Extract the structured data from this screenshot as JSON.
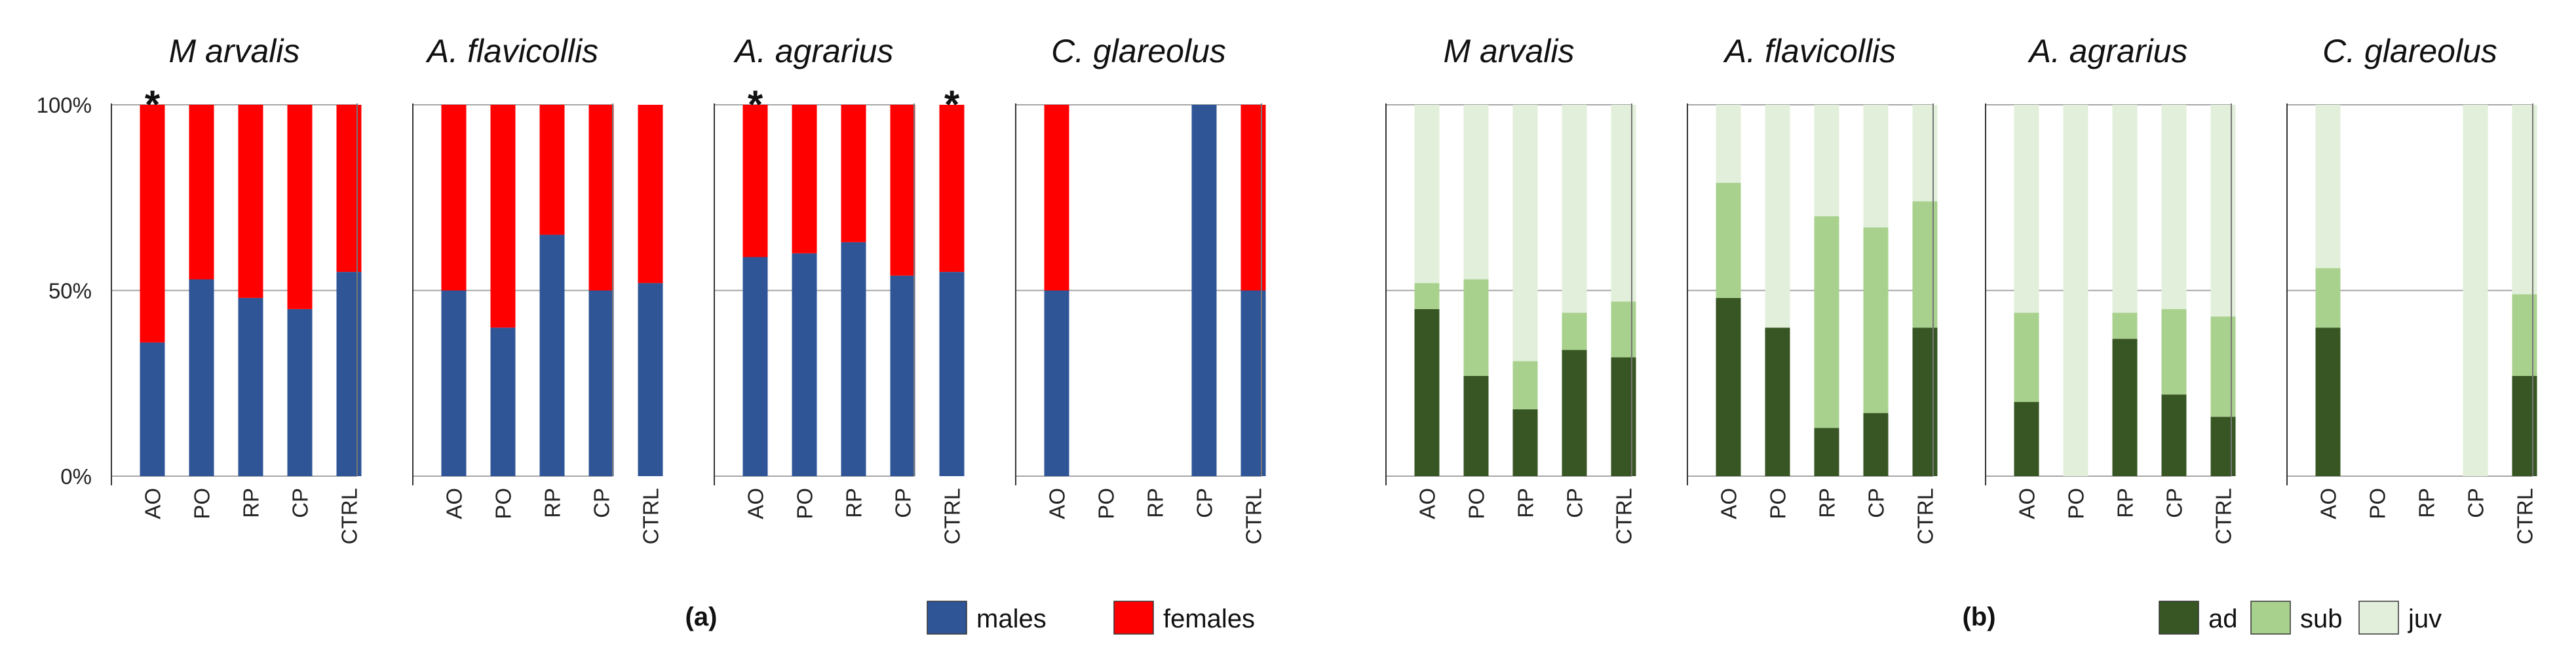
{
  "chart_data": [
    {
      "type": "bar",
      "stacked": true,
      "panel_label": "(a)",
      "categories": [
        "AO",
        "PO",
        "RP",
        "CP",
        "CTRL"
      ],
      "yticks": [
        "0%",
        "50%",
        "100%"
      ],
      "ylim": [
        0,
        100
      ],
      "legend": [
        {
          "name": "males",
          "color": "#2f5597"
        },
        {
          "name": "females",
          "color": "#ff0000"
        }
      ],
      "panels": [
        {
          "title": "M arvalis",
          "series": [
            {
              "name": "males",
              "values": [
                36,
                53,
                48,
                45,
                55
              ]
            },
            {
              "name": "females",
              "values": [
                64,
                47,
                52,
                55,
                45
              ]
            }
          ],
          "stars": [
            {
              "category": "AO",
              "label": "*"
            }
          ]
        },
        {
          "title": "A. flavicollis",
          "series": [
            {
              "name": "males",
              "values": [
                50,
                40,
                65,
                50,
                52
              ]
            },
            {
              "name": "females",
              "values": [
                50,
                60,
                35,
                50,
                48
              ]
            }
          ],
          "stars": []
        },
        {
          "title": "A. agrarius",
          "series": [
            {
              "name": "males",
              "values": [
                59,
                60,
                63,
                54,
                55
              ]
            },
            {
              "name": "females",
              "values": [
                41,
                40,
                37,
                46,
                45
              ]
            }
          ],
          "stars": [
            {
              "category": "AO",
              "label": "*"
            },
            {
              "category": "CTRL",
              "label": "*"
            }
          ]
        },
        {
          "title": "C. glareolus",
          "series": [
            {
              "name": "males",
              "values": [
                50,
                0,
                0,
                100,
                50
              ]
            },
            {
              "name": "females",
              "values": [
                50,
                0,
                0,
                0,
                50
              ]
            }
          ],
          "stars": []
        }
      ]
    },
    {
      "type": "bar",
      "stacked": true,
      "panel_label": "(b)",
      "categories": [
        "AO",
        "PO",
        "RP",
        "CP",
        "CTRL"
      ],
      "ylim": [
        0,
        100
      ],
      "legend": [
        {
          "name": "ad",
          "color": "#375623"
        },
        {
          "name": "sub",
          "color": "#a9d18e"
        },
        {
          "name": "juv",
          "color": "#e2efda"
        }
      ],
      "panels": [
        {
          "title": "M arvalis",
          "series": [
            {
              "name": "ad",
              "values": [
                45,
                27,
                18,
                34,
                32
              ]
            },
            {
              "name": "sub",
              "values": [
                7,
                26,
                13,
                10,
                15
              ]
            },
            {
              "name": "juv",
              "values": [
                48,
                47,
                69,
                56,
                53
              ]
            }
          ],
          "stars": []
        },
        {
          "title": "A. flavicollis",
          "series": [
            {
              "name": "ad",
              "values": [
                48,
                40,
                13,
                17,
                40
              ]
            },
            {
              "name": "sub",
              "values": [
                31,
                0,
                57,
                50,
                34
              ]
            },
            {
              "name": "juv",
              "values": [
                21,
                60,
                30,
                33,
                26
              ]
            }
          ],
          "stars": []
        },
        {
          "title": "A. agrarius",
          "series": [
            {
              "name": "ad",
              "values": [
                20,
                0,
                37,
                22,
                16
              ]
            },
            {
              "name": "sub",
              "values": [
                24,
                0,
                7,
                23,
                27
              ]
            },
            {
              "name": "juv",
              "values": [
                56,
                100,
                56,
                55,
                57
              ]
            }
          ],
          "stars": []
        },
        {
          "title": "C. glareolus",
          "series": [
            {
              "name": "ad",
              "values": [
                40,
                0,
                0,
                0,
                27
              ]
            },
            {
              "name": "sub",
              "values": [
                16,
                0,
                0,
                0,
                22
              ]
            },
            {
              "name": "juv",
              "values": [
                44,
                0,
                0,
                100,
                51
              ]
            }
          ],
          "stars": []
        }
      ]
    }
  ]
}
